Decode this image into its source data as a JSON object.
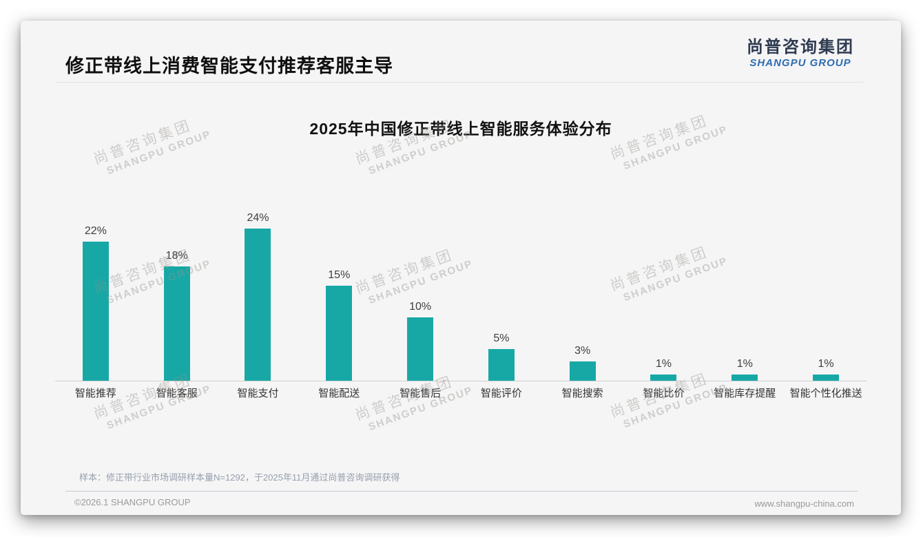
{
  "slide": {
    "title": "修正带线上消费智能支付推荐客服主导",
    "logo": {
      "cn": "尚普咨询集团",
      "en": "SHANGPU GROUP"
    },
    "watermark": {
      "cn": "尚普咨询集团",
      "en": "SHANGPU GROUP"
    },
    "footnote": "样本：修正带行业市场调研样本量N=1292，于2025年11月通过尚普咨询调研获得",
    "footer": {
      "left": "©2026.1 SHANGPU GROUP",
      "right": "www.shangpu-china.com"
    }
  },
  "chart_data": {
    "type": "bar",
    "title": "2025年中国修正带线上智能服务体验分布",
    "categories": [
      "智能推荐",
      "智能客服",
      "智能支付",
      "智能配送",
      "智能售后",
      "智能评价",
      "智能搜索",
      "智能比价",
      "智能库存提醒",
      "智能个性化推送"
    ],
    "values": [
      22,
      18,
      24,
      15,
      10,
      5,
      3,
      1,
      1,
      1
    ],
    "unit": "%",
    "value_labels": [
      "22%",
      "18%",
      "24%",
      "15%",
      "10%",
      "5%",
      "3%",
      "1%",
      "1%",
      "1%"
    ],
    "bar_color": "#17A8A6",
    "xlabel": "",
    "ylabel": "",
    "ylim": [
      0,
      26
    ],
    "grid": false,
    "legend": "none"
  }
}
